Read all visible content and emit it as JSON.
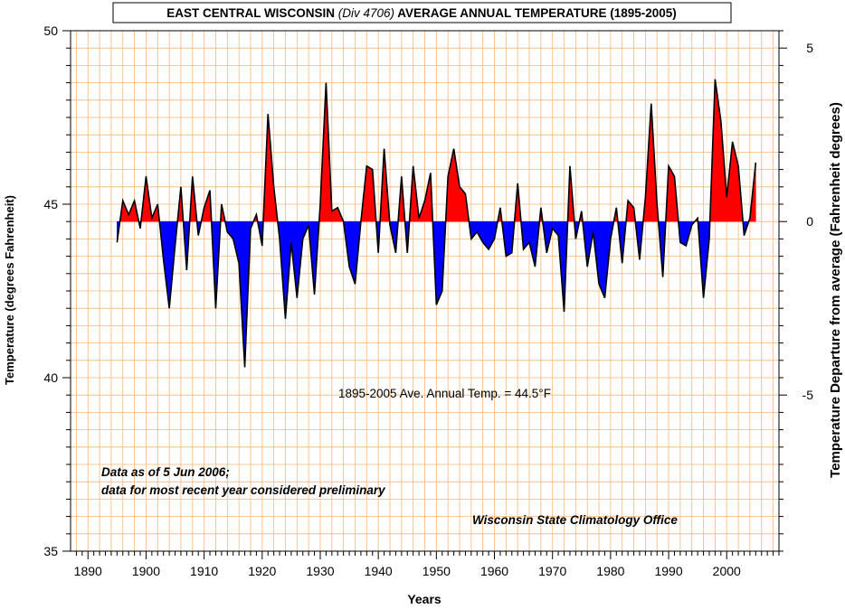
{
  "chart_data": {
    "type": "area",
    "title_parts": {
      "pre": "EAST CENTRAL WISCONSIN ",
      "italic": "(Div 4706)",
      "post": " AVERAGE  ANNUAL TEMPERATURE (1895-2005)"
    },
    "xlabel": "Years",
    "ylabel_left": "Temperature  (degrees Fahrenheit)",
    "ylabel_right": "Temperature Departure from average (Fahrenheit degrees)",
    "xlim": [
      1887,
      2009
    ],
    "ylim_left": [
      35,
      50
    ],
    "ylim_right": [
      -9.5,
      5.5
    ],
    "x_ticks": [
      1890,
      1900,
      1910,
      1920,
      1930,
      1940,
      1950,
      1960,
      1970,
      1980,
      1990,
      2000
    ],
    "y_ticks_left": [
      35,
      40,
      45,
      50
    ],
    "y_ticks_right": [
      -5,
      0,
      5
    ],
    "baseline": 44.5,
    "grid": true,
    "above_color": "#ff0000",
    "below_color": "#0000ff",
    "grid_color": "#f5b87a",
    "x": [
      1895,
      1896,
      1897,
      1898,
      1899,
      1900,
      1901,
      1902,
      1903,
      1904,
      1905,
      1906,
      1907,
      1908,
      1909,
      1910,
      1911,
      1912,
      1913,
      1914,
      1915,
      1916,
      1917,
      1918,
      1919,
      1920,
      1921,
      1922,
      1923,
      1924,
      1925,
      1926,
      1927,
      1928,
      1929,
      1930,
      1931,
      1932,
      1933,
      1934,
      1935,
      1936,
      1937,
      1938,
      1939,
      1940,
      1941,
      1942,
      1943,
      1944,
      1945,
      1946,
      1947,
      1948,
      1949,
      1950,
      1951,
      1952,
      1953,
      1954,
      1955,
      1956,
      1957,
      1958,
      1959,
      1960,
      1961,
      1962,
      1963,
      1964,
      1965,
      1966,
      1967,
      1968,
      1969,
      1970,
      1971,
      1972,
      1973,
      1974,
      1975,
      1976,
      1977,
      1978,
      1979,
      1980,
      1981,
      1982,
      1983,
      1984,
      1985,
      1986,
      1987,
      1988,
      1989,
      1990,
      1991,
      1992,
      1993,
      1994,
      1995,
      1996,
      1997,
      1998,
      1999,
      2000,
      2001,
      2002,
      2003,
      2004,
      2005
    ],
    "values": [
      43.9,
      45.1,
      44.7,
      45.1,
      44.3,
      45.8,
      44.6,
      45.0,
      43.4,
      42.0,
      43.8,
      45.5,
      43.1,
      45.8,
      44.1,
      44.9,
      45.4,
      42.0,
      45.0,
      44.2,
      44.0,
      43.3,
      40.3,
      44.3,
      44.7,
      43.8,
      47.6,
      45.5,
      44.0,
      41.7,
      43.9,
      42.3,
      44.0,
      44.4,
      42.4,
      45.0,
      48.5,
      44.8,
      44.9,
      44.5,
      43.2,
      42.7,
      44.5,
      46.1,
      46.0,
      43.6,
      46.6,
      44.4,
      43.6,
      45.8,
      43.6,
      46.1,
      44.6,
      45.1,
      45.9,
      42.1,
      42.5,
      45.8,
      46.6,
      45.5,
      45.3,
      44.0,
      44.2,
      43.9,
      43.7,
      44.0,
      44.9,
      43.5,
      43.6,
      45.6,
      43.7,
      43.9,
      43.2,
      44.9,
      43.6,
      44.3,
      44.1,
      41.9,
      46.1,
      44.0,
      44.8,
      43.2,
      44.2,
      42.7,
      42.3,
      44.0,
      44.9,
      43.3,
      45.1,
      44.9,
      43.4,
      45.2,
      47.9,
      45.0,
      42.9,
      46.1,
      45.8,
      43.9,
      43.8,
      44.4,
      44.6,
      42.3,
      44.0,
      48.6,
      47.4,
      45.2,
      46.8,
      46.1,
      44.1,
      44.6,
      46.2
    ]
  },
  "annotations": {
    "avg": "1895-2005 Ave. Annual Temp. = 44.5°F",
    "note_line1": "Data as of 5 Jun 2006;",
    "note_line2": "data for most recent year considered preliminary",
    "source": "Wisconsin State Climatology Office"
  }
}
